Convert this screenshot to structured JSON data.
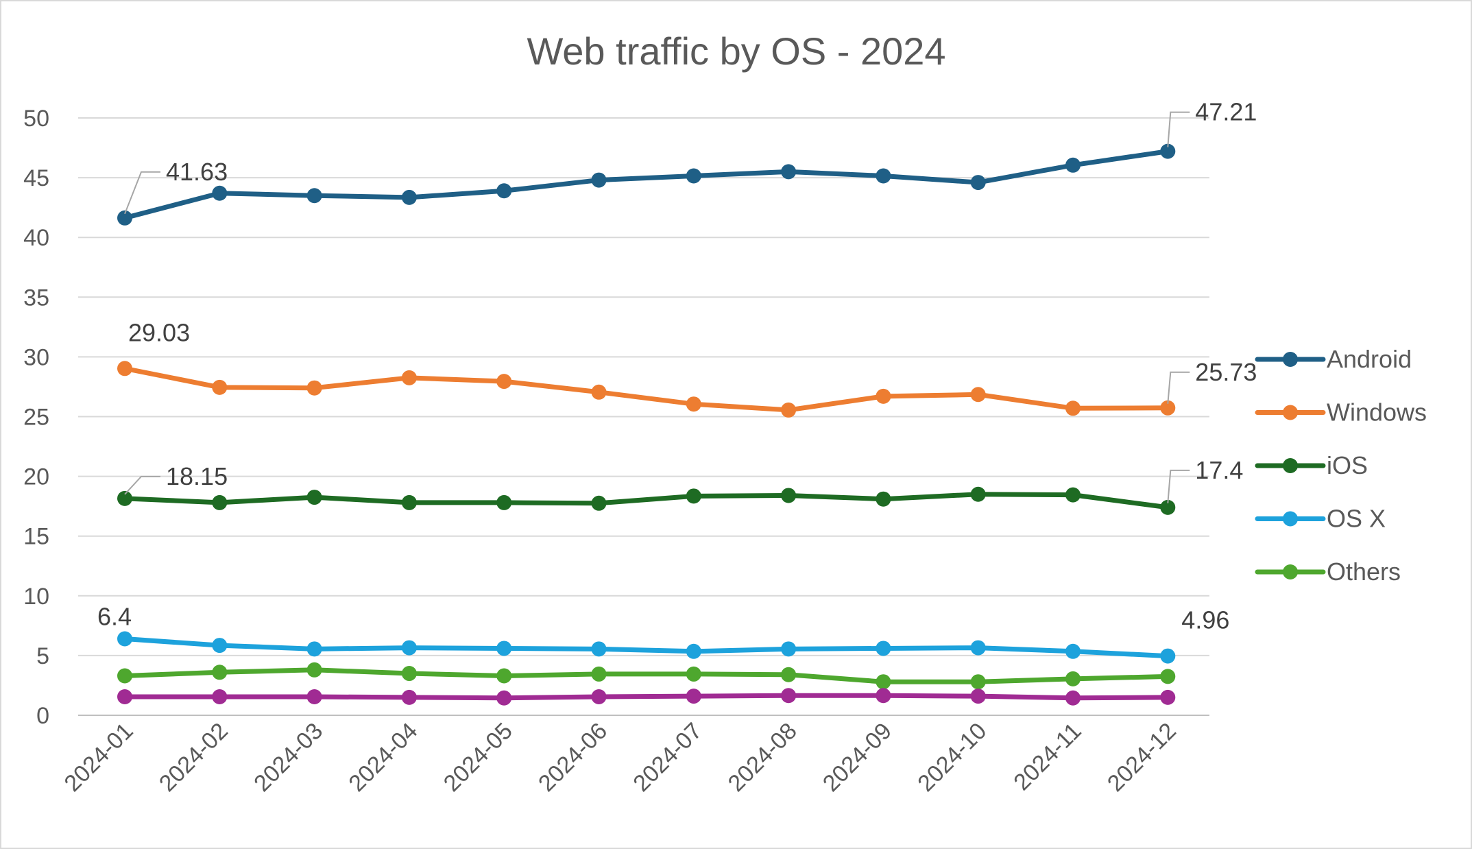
{
  "chart_data": {
    "type": "line",
    "title": "Web traffic by OS - 2024",
    "xlabel": "",
    "ylabel": "",
    "categories": [
      "2024-01",
      "2024-02",
      "2024-03",
      "2024-04",
      "2024-05",
      "2024-06",
      "2024-07",
      "2024-08",
      "2024-09",
      "2024-10",
      "2024-11",
      "2024-12"
    ],
    "ylim": [
      0,
      50
    ],
    "yticks": [
      "0",
      "5",
      "10",
      "15",
      "20",
      "25",
      "30",
      "35",
      "40",
      "45",
      "50"
    ],
    "grid": true,
    "legend_position": "right",
    "series": [
      {
        "name": "Android",
        "color": "#1f5f86",
        "values": [
          41.63,
          43.7,
          43.5,
          43.35,
          43.9,
          44.8,
          45.15,
          45.5,
          45.15,
          44.6,
          46.05,
          47.21
        ],
        "in_legend": true
      },
      {
        "name": "Windows",
        "color": "#ed7d31",
        "values": [
          29.03,
          27.45,
          27.4,
          28.25,
          27.95,
          27.05,
          26.05,
          25.55,
          26.7,
          26.85,
          25.7,
          25.73
        ],
        "in_legend": true
      },
      {
        "name": "iOS",
        "color": "#1e6b23",
        "values": [
          18.15,
          17.8,
          18.25,
          17.8,
          17.8,
          17.75,
          18.35,
          18.4,
          18.1,
          18.5,
          18.45,
          17.4
        ],
        "in_legend": true
      },
      {
        "name": "OS X",
        "color": "#1da2dc",
        "values": [
          6.4,
          5.85,
          5.55,
          5.65,
          5.6,
          5.55,
          5.35,
          5.55,
          5.6,
          5.65,
          5.35,
          4.96
        ],
        "in_legend": true
      },
      {
        "name": "Others",
        "color": "#4ea72e",
        "values": [
          3.3,
          3.6,
          3.8,
          3.5,
          3.3,
          3.45,
          3.45,
          3.4,
          2.8,
          2.8,
          3.05,
          3.25
        ],
        "in_legend": true
      },
      {
        "name": "",
        "color": "#a02b93",
        "values": [
          1.55,
          1.55,
          1.55,
          1.5,
          1.45,
          1.55,
          1.6,
          1.65,
          1.65,
          1.6,
          1.45,
          1.5
        ],
        "in_legend": false
      }
    ],
    "data_labels": [
      {
        "series": 0,
        "index": 0,
        "text": "41.63"
      },
      {
        "series": 0,
        "index": 11,
        "text": "47.21"
      },
      {
        "series": 1,
        "index": 0,
        "text": "29.03"
      },
      {
        "series": 1,
        "index": 11,
        "text": "25.73"
      },
      {
        "series": 2,
        "index": 0,
        "text": "18.15"
      },
      {
        "series": 2,
        "index": 11,
        "text": "17.4"
      },
      {
        "series": 3,
        "index": 0,
        "text": "6.4"
      },
      {
        "series": 3,
        "index": 11,
        "text": "4.96"
      }
    ]
  }
}
